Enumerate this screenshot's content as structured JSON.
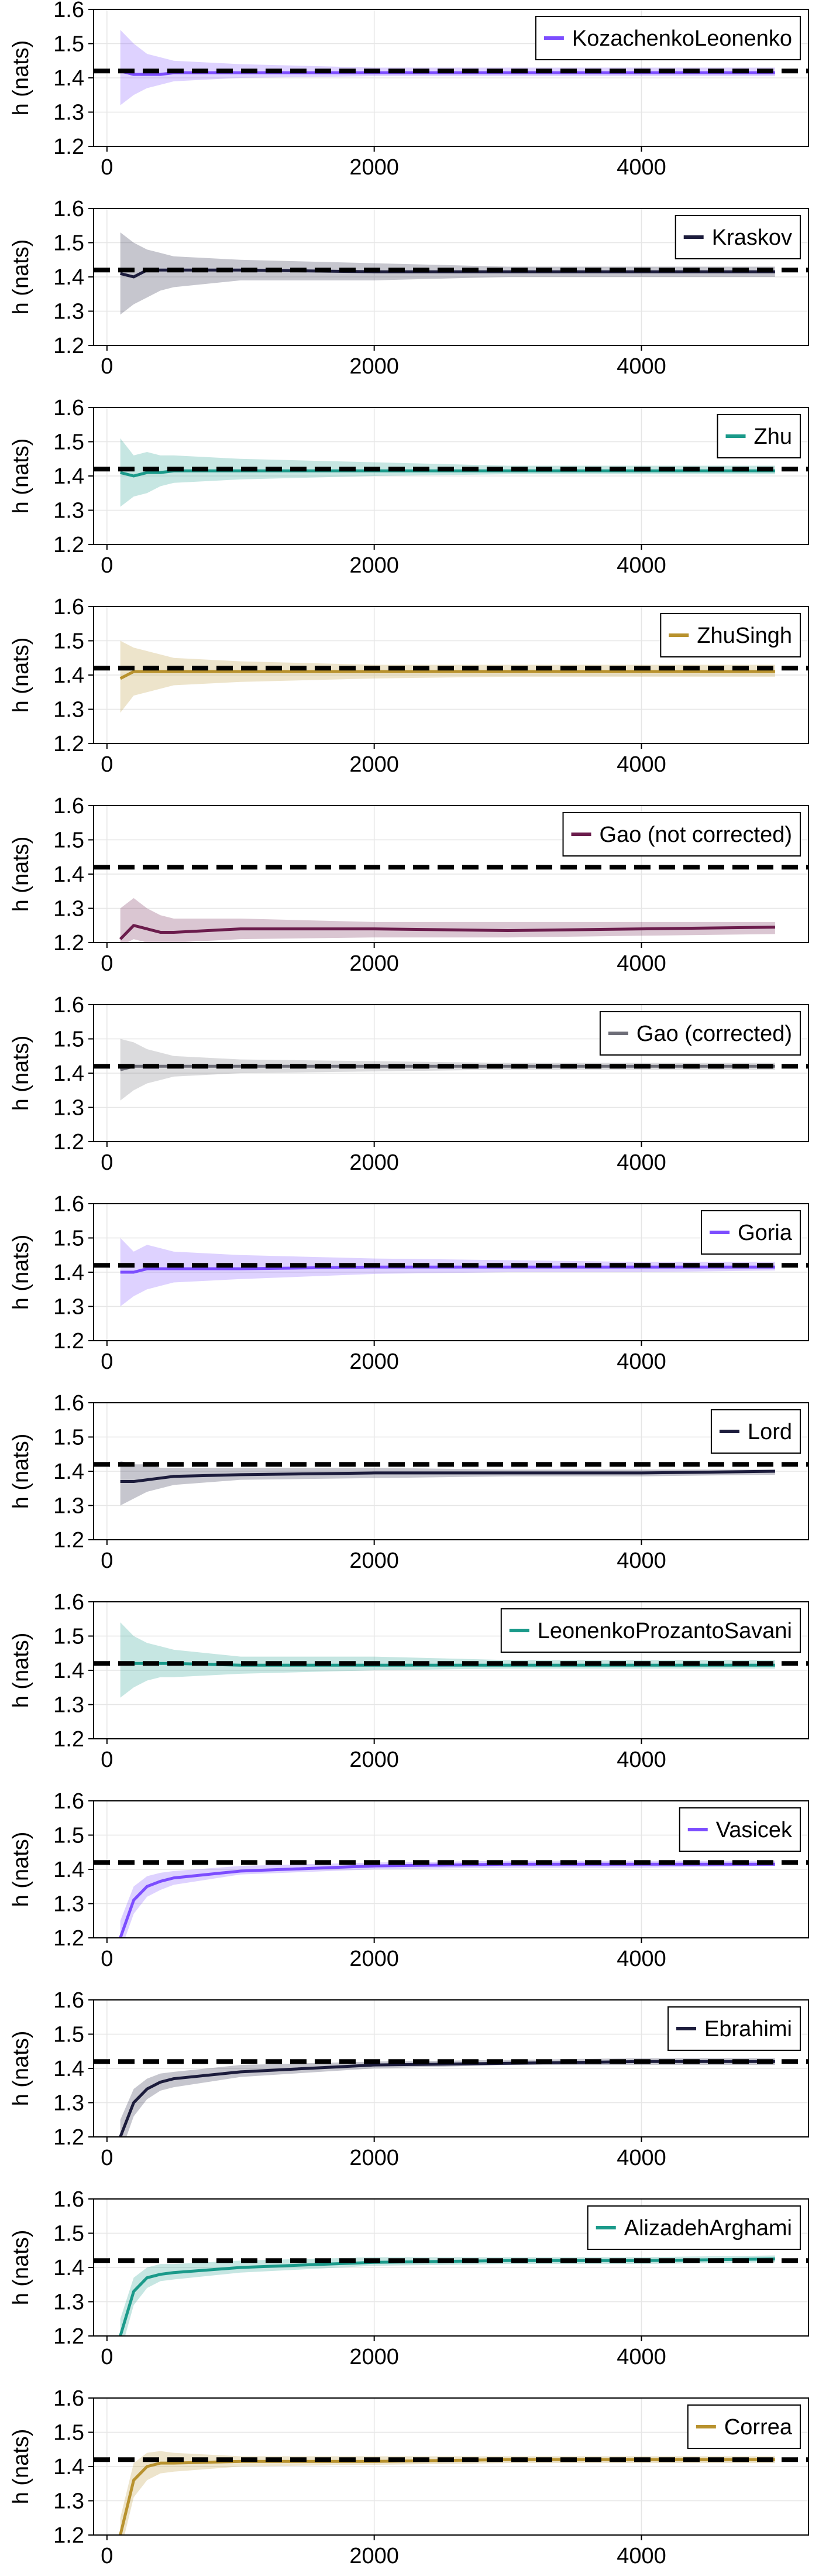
{
  "chart_data": {
    "type": "line",
    "ylabel": "h (nats)",
    "xlim": [
      -100,
      5250
    ],
    "ylim": [
      1.2,
      1.6
    ],
    "xticks": [
      0,
      2000,
      4000
    ],
    "yticks": [
      1.2,
      1.3,
      1.4,
      1.5,
      1.6
    ],
    "grid": true,
    "legend_position": "top-right",
    "reference_line": {
      "y": 1.42,
      "style": "dashed",
      "color": "#000000"
    },
    "x": [
      100,
      200,
      300,
      400,
      500,
      1000,
      2000,
      3000,
      4000,
      5000
    ],
    "panels": [
      {
        "name": "KozachenkoLeonenko",
        "color": "#7c4dff",
        "values": [
          1.42,
          1.41,
          1.41,
          1.41,
          1.415,
          1.415,
          1.415,
          1.415,
          1.415,
          1.415
        ],
        "lower": [
          1.32,
          1.35,
          1.37,
          1.38,
          1.39,
          1.4,
          1.405,
          1.405,
          1.405,
          1.405
        ],
        "upper": [
          1.54,
          1.5,
          1.47,
          1.46,
          1.45,
          1.44,
          1.43,
          1.43,
          1.43,
          1.43
        ]
      },
      {
        "name": "Kraskov",
        "color": "#1c1c3c",
        "values": [
          1.41,
          1.4,
          1.42,
          1.42,
          1.42,
          1.42,
          1.415,
          1.415,
          1.415,
          1.415
        ],
        "lower": [
          1.29,
          1.32,
          1.34,
          1.36,
          1.37,
          1.39,
          1.39,
          1.4,
          1.4,
          1.4
        ],
        "upper": [
          1.53,
          1.5,
          1.48,
          1.47,
          1.46,
          1.45,
          1.44,
          1.43,
          1.43,
          1.43
        ]
      },
      {
        "name": "Zhu",
        "color": "#1a9a8a",
        "values": [
          1.41,
          1.4,
          1.41,
          1.41,
          1.415,
          1.415,
          1.415,
          1.415,
          1.415,
          1.415
        ],
        "lower": [
          1.31,
          1.34,
          1.35,
          1.37,
          1.38,
          1.39,
          1.4,
          1.405,
          1.405,
          1.405
        ],
        "upper": [
          1.51,
          1.46,
          1.47,
          1.46,
          1.46,
          1.45,
          1.44,
          1.43,
          1.43,
          1.43
        ]
      },
      {
        "name": "ZhuSingh",
        "color": "#b8922e",
        "values": [
          1.39,
          1.41,
          1.41,
          1.41,
          1.41,
          1.41,
          1.41,
          1.41,
          1.41,
          1.41
        ],
        "lower": [
          1.29,
          1.34,
          1.35,
          1.36,
          1.37,
          1.38,
          1.39,
          1.395,
          1.395,
          1.395
        ],
        "upper": [
          1.5,
          1.48,
          1.47,
          1.46,
          1.45,
          1.44,
          1.43,
          1.43,
          1.43,
          1.43
        ]
      },
      {
        "name": "Gao (not corrected)",
        "color": "#6b1c4c",
        "values": [
          1.21,
          1.25,
          1.24,
          1.23,
          1.23,
          1.24,
          1.24,
          1.235,
          1.24,
          1.245
        ],
        "lower": [
          1.19,
          1.21,
          1.2,
          1.2,
          1.2,
          1.21,
          1.215,
          1.215,
          1.22,
          1.225
        ],
        "upper": [
          1.3,
          1.33,
          1.3,
          1.28,
          1.27,
          1.27,
          1.26,
          1.26,
          1.26,
          1.26
        ]
      },
      {
        "name": "Gao (corrected)",
        "color": "#6e6e78",
        "values": [
          1.41,
          1.42,
          1.42,
          1.42,
          1.42,
          1.42,
          1.42,
          1.42,
          1.42,
          1.42
        ],
        "lower": [
          1.32,
          1.35,
          1.37,
          1.38,
          1.39,
          1.4,
          1.405,
          1.41,
          1.41,
          1.41
        ],
        "upper": [
          1.5,
          1.49,
          1.47,
          1.46,
          1.45,
          1.44,
          1.435,
          1.43,
          1.43,
          1.43
        ]
      },
      {
        "name": "Goria",
        "color": "#7c4dff",
        "values": [
          1.4,
          1.4,
          1.41,
          1.41,
          1.41,
          1.41,
          1.415,
          1.415,
          1.415,
          1.415
        ],
        "lower": [
          1.3,
          1.33,
          1.35,
          1.36,
          1.37,
          1.38,
          1.395,
          1.4,
          1.4,
          1.405
        ],
        "upper": [
          1.5,
          1.46,
          1.48,
          1.47,
          1.46,
          1.45,
          1.44,
          1.435,
          1.43,
          1.43
        ]
      },
      {
        "name": "Lord",
        "color": "#1c1c3c",
        "values": [
          1.37,
          1.37,
          1.375,
          1.38,
          1.385,
          1.39,
          1.395,
          1.395,
          1.395,
          1.4
        ],
        "lower": [
          1.3,
          1.32,
          1.34,
          1.35,
          1.36,
          1.375,
          1.38,
          1.385,
          1.385,
          1.39
        ],
        "upper": [
          1.43,
          1.42,
          1.42,
          1.41,
          1.41,
          1.41,
          1.41,
          1.405,
          1.405,
          1.405
        ]
      },
      {
        "name": "LeonenkoProzantoSavani",
        "color": "#1a9a8a",
        "values": [
          1.42,
          1.42,
          1.42,
          1.42,
          1.42,
          1.415,
          1.415,
          1.415,
          1.415,
          1.415
        ],
        "lower": [
          1.32,
          1.35,
          1.37,
          1.38,
          1.38,
          1.39,
          1.4,
          1.405,
          1.405,
          1.405
        ],
        "upper": [
          1.54,
          1.5,
          1.48,
          1.47,
          1.46,
          1.44,
          1.44,
          1.43,
          1.43,
          1.43
        ]
      },
      {
        "name": "Vasicek",
        "color": "#7c4dff",
        "values": [
          1.2,
          1.31,
          1.35,
          1.365,
          1.375,
          1.395,
          1.41,
          1.415,
          1.415,
          1.415
        ],
        "lower": [
          1.16,
          1.27,
          1.32,
          1.34,
          1.355,
          1.385,
          1.4,
          1.405,
          1.405,
          1.41
        ],
        "upper": [
          1.25,
          1.35,
          1.38,
          1.39,
          1.395,
          1.41,
          1.42,
          1.425,
          1.425,
          1.425
        ]
      },
      {
        "name": "Ebrahimi",
        "color": "#1c1c3c",
        "values": [
          1.2,
          1.3,
          1.34,
          1.36,
          1.37,
          1.39,
          1.41,
          1.415,
          1.42,
          1.42
        ],
        "lower": [
          1.15,
          1.26,
          1.31,
          1.335,
          1.345,
          1.375,
          1.4,
          1.41,
          1.41,
          1.41
        ],
        "upper": [
          1.25,
          1.34,
          1.37,
          1.385,
          1.39,
          1.41,
          1.42,
          1.425,
          1.43,
          1.43
        ]
      },
      {
        "name": "AlizadehArghami",
        "color": "#1a9a8a",
        "values": [
          1.2,
          1.33,
          1.37,
          1.38,
          1.385,
          1.4,
          1.415,
          1.42,
          1.42,
          1.425
        ],
        "lower": [
          1.15,
          1.29,
          1.34,
          1.36,
          1.365,
          1.385,
          1.405,
          1.41,
          1.41,
          1.415
        ],
        "upper": [
          1.25,
          1.37,
          1.4,
          1.41,
          1.41,
          1.42,
          1.43,
          1.43,
          1.43,
          1.435
        ]
      },
      {
        "name": "Correa",
        "color": "#b8922e",
        "values": [
          1.2,
          1.36,
          1.4,
          1.41,
          1.41,
          1.415,
          1.415,
          1.42,
          1.42,
          1.42
        ],
        "lower": [
          1.15,
          1.31,
          1.36,
          1.38,
          1.385,
          1.4,
          1.405,
          1.41,
          1.41,
          1.41
        ],
        "upper": [
          1.25,
          1.41,
          1.44,
          1.445,
          1.44,
          1.43,
          1.43,
          1.43,
          1.43,
          1.43
        ]
      }
    ]
  }
}
